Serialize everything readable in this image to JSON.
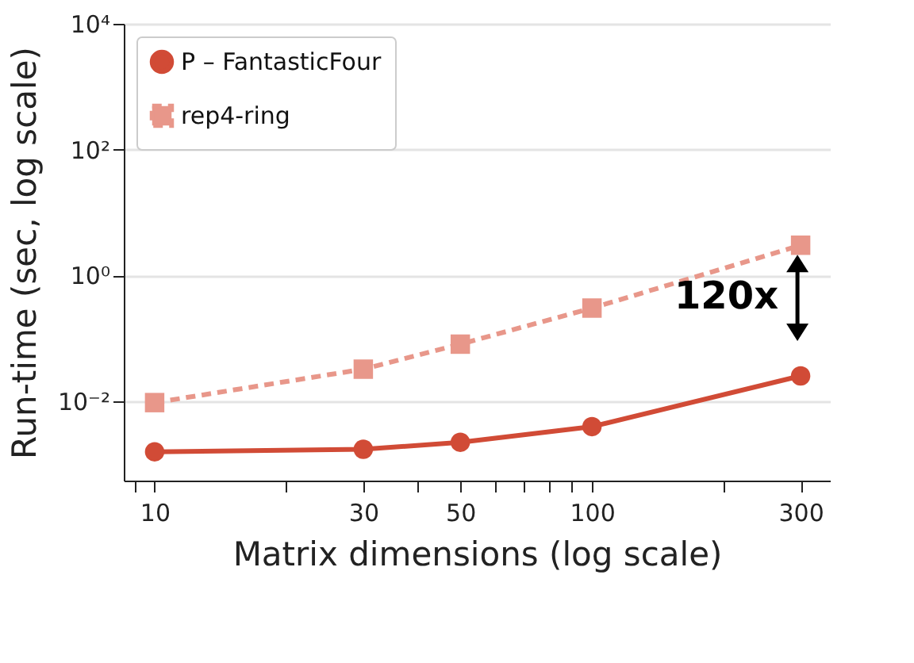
{
  "chart_data": {
    "type": "line",
    "xlabel": "Matrix dimensions (log scale)",
    "ylabel": "Run-time (sec, log scale)",
    "x": [
      10,
      30,
      50,
      100,
      300
    ],
    "series": [
      {
        "name": "P – FantasticFour",
        "color": "#d14b36",
        "marker": "circle",
        "line_style": "solid",
        "values": [
          0.00155,
          0.0017,
          0.0022,
          0.0039,
          0.025
        ]
      },
      {
        "name": "rep4-ring",
        "color": "#e8978a",
        "marker": "square",
        "line_style": "dashed",
        "values": [
          0.0094,
          0.032,
          0.08,
          0.3,
          3.0
        ]
      }
    ],
    "log": "xy",
    "xlim": [
      8.5,
      350
    ],
    "ylim": [
      0.00054,
      10000
    ],
    "xticks": [
      {
        "value": 9,
        "label": null
      },
      10,
      {
        "value": 20,
        "label": null
      },
      30,
      {
        "value": 40,
        "label": null
      },
      50,
      {
        "value": 60,
        "label": null
      },
      {
        "value": 70,
        "label": null
      },
      {
        "value": 80,
        "label": null
      },
      {
        "value": 90,
        "label": null
      },
      100,
      {
        "value": 200,
        "label": null
      },
      300
    ],
    "yticks": [
      {
        "value": 0.01,
        "label": "10⁻²"
      },
      {
        "value": 1,
        "label": "10⁰"
      },
      {
        "value": 100,
        "label": "10²"
      },
      {
        "value": 10000,
        "label": "10⁴"
      }
    ],
    "grid": "y",
    "legend": "top left",
    "annotations": [
      "120x"
    ]
  }
}
